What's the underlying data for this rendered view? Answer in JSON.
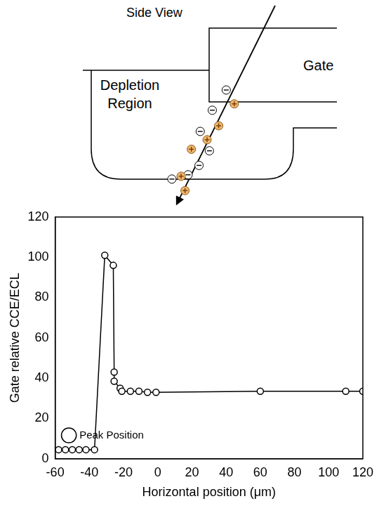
{
  "diagram": {
    "title": "Side View",
    "gate_label": "Gate",
    "region_label": "Depletion Region"
  },
  "chart_data": {
    "type": "line",
    "x_label": "Horizontal position (μm)",
    "y_label": "Gate relative CCE/ECL",
    "x": [
      -58,
      -54,
      -50,
      -46,
      -42,
      -37,
      -31,
      -26,
      -25.5,
      -25.5,
      -22,
      -21,
      -16,
      -11,
      -6,
      -1,
      60,
      110,
      120
    ],
    "series": [
      {
        "name": "Peak Position",
        "color": "#000000",
        "marker": "circle",
        "line_style": "solid",
        "values": [
          4.5,
          4.5,
          4.5,
          4.5,
          4.5,
          4.5,
          101,
          96,
          43,
          38.5,
          35,
          33.5,
          33.5,
          33.5,
          33,
          33,
          33.5,
          33.5,
          33.5
        ]
      }
    ],
    "xlim": [
      -60,
      120
    ],
    "xticks": [
      -60,
      -40,
      -20,
      0,
      20,
      40,
      60,
      80,
      100,
      120
    ],
    "ylim": [
      0,
      120
    ],
    "yticks": [
      0,
      20,
      40,
      60,
      80,
      100,
      120
    ],
    "grid": false,
    "legend": "upper right"
  }
}
